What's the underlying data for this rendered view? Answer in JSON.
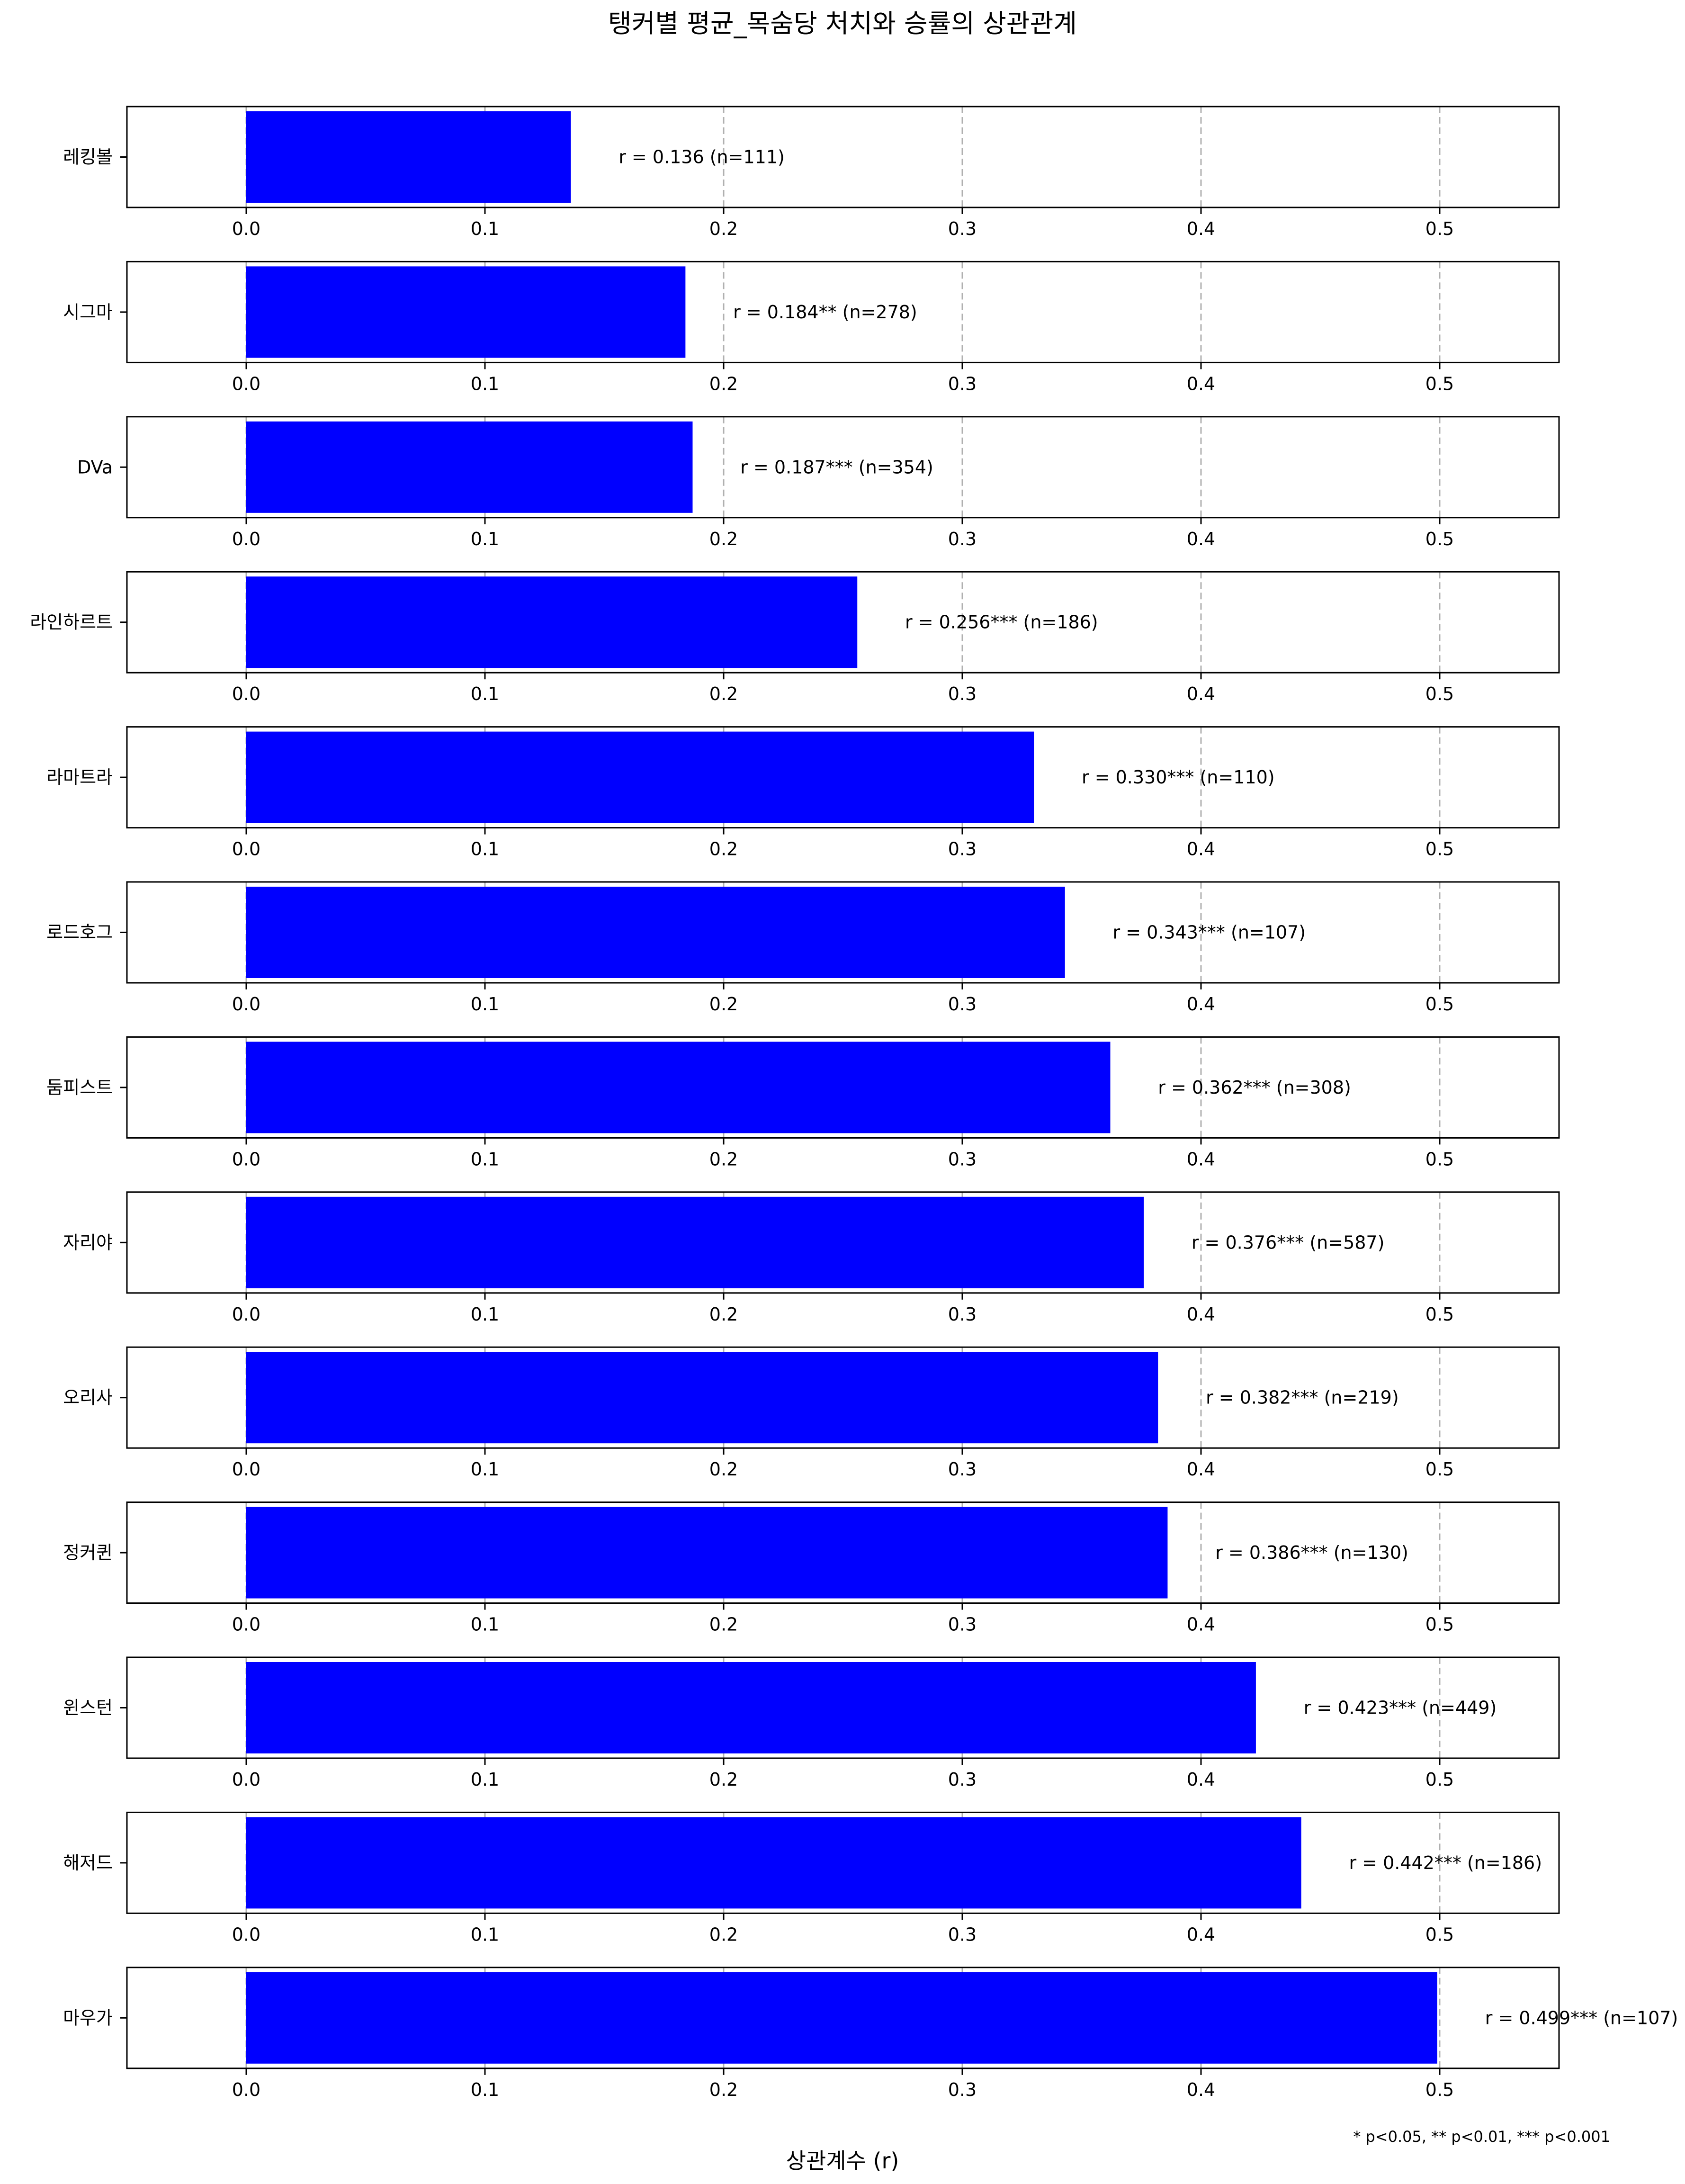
{
  "chart_data": {
    "type": "bar",
    "orientation": "horizontal",
    "layout": "small-multiples",
    "title": "탱커별 평균_목숨당 처치와 승률의 상관관계",
    "xlabel": "상관계수 (r)",
    "ylabel": "",
    "xlim": [
      -0.05,
      0.55
    ],
    "xticks": [
      "0.0",
      "0.1",
      "0.2",
      "0.3",
      "0.4",
      "0.5"
    ],
    "grid": "x-dashed",
    "bar_color": "#0000ff",
    "footnote": "* p<0.05, ** p<0.01, *** p<0.001",
    "categories": [
      "레킹볼",
      "시그마",
      "DVa",
      "라인하르트",
      "라마트라",
      "로드호그",
      "둠피스트",
      "자리야",
      "오리사",
      "정커퀸",
      "윈스턴",
      "해저드",
      "마우가"
    ],
    "values": [
      0.136,
      0.184,
      0.187,
      0.256,
      0.33,
      0.343,
      0.362,
      0.376,
      0.382,
      0.386,
      0.423,
      0.442,
      0.499
    ],
    "labels": [
      "r = 0.136 (n=111)",
      "r = 0.184** (n=278)",
      "r = 0.187*** (n=354)",
      "r = 0.256*** (n=186)",
      "r = 0.330*** (n=110)",
      "r = 0.343*** (n=107)",
      "r = 0.362*** (n=308)",
      "r = 0.376*** (n=587)",
      "r = 0.382*** (n=219)",
      "r = 0.386*** (n=130)",
      "r = 0.423*** (n=449)",
      "r = 0.442*** (n=186)",
      "r = 0.499*** (n=107)"
    ]
  }
}
